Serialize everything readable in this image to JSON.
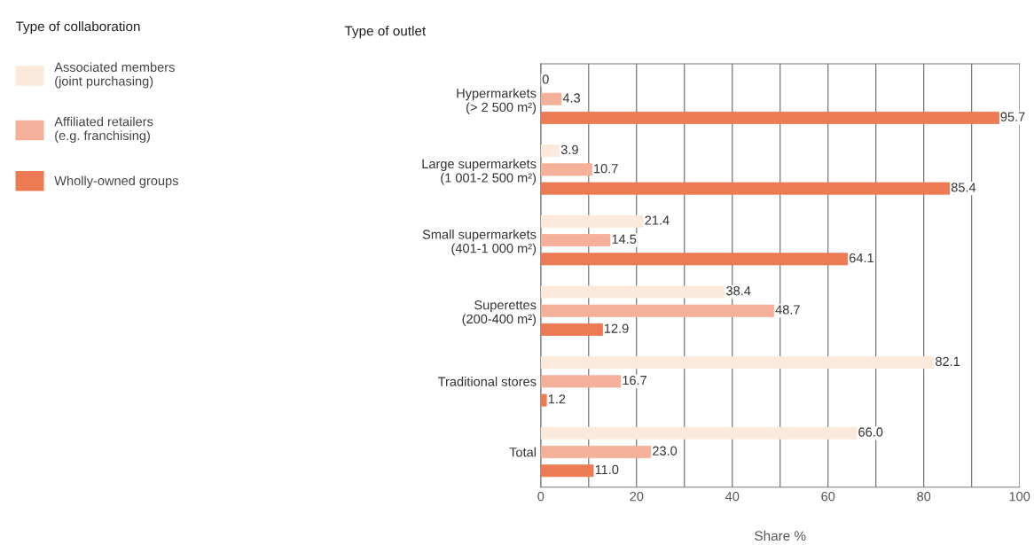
{
  "chart_data": {
    "type": "bar",
    "orientation": "horizontal",
    "categories": [
      "Hypermarkets\n(> 2 500 m²)",
      "Large supermarkets\n(1 001-2 500 m²)",
      "Small supermarkets\n(401-1 000 m²)",
      "Superettes\n(200-400 m²)",
      "Traditional stores",
      "Total"
    ],
    "series": [
      {
        "name": "Associated members\n(joint purchasing)",
        "color": "#fbeadb",
        "values": [
          0,
          3.9,
          21.4,
          38.4,
          82.1,
          66.0
        ],
        "value_labels": [
          "0",
          "3.9",
          "21.4",
          "38.4",
          "82.1",
          "66.0"
        ]
      },
      {
        "name": "Affiliated retailers\n(e.g. franchising)",
        "color": "#f4b098",
        "values": [
          4.3,
          10.7,
          14.5,
          48.7,
          16.7,
          23.0
        ],
        "value_labels": [
          "4.3",
          "10.7",
          "14.5",
          "48.7",
          "16.7",
          "23.0"
        ]
      },
      {
        "name": "Wholly-owned groups",
        "color": "#ec7a52",
        "values": [
          95.7,
          85.4,
          64.1,
          12.9,
          1.2,
          11.0
        ],
        "value_labels": [
          "95.7",
          "85.4",
          "64.1",
          "12.9",
          "1.2",
          "11.0"
        ]
      }
    ],
    "xlabel": "Share %",
    "ylabel": "Type of outlet",
    "legend_title": "Type of collaboration",
    "xlim": [
      0,
      100
    ],
    "xticks": [
      0,
      {
        "value": 10,
        "label": null
      },
      20,
      {
        "value": 30,
        "label": null
      },
      40,
      {
        "value": 50,
        "label": null
      },
      60,
      {
        "value": 70,
        "label": null
      },
      80,
      {
        "value": 90,
        "label": null
      },
      100
    ],
    "grid": "x",
    "legend": "left"
  }
}
